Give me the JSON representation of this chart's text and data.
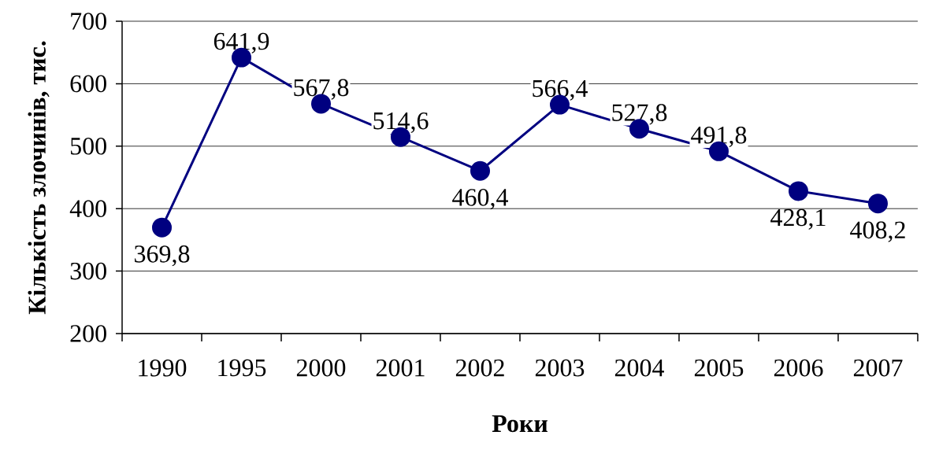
{
  "chart_data": {
    "type": "line",
    "xlabel": "Роки",
    "ylabel": "Кількість злочинів, тис.",
    "categories": [
      "1990",
      "1995",
      "2000",
      "2001",
      "2002",
      "2003",
      "2004",
      "2005",
      "2006",
      "2007"
    ],
    "values": [
      369.8,
      641.9,
      567.8,
      514.6,
      460.4,
      566.4,
      527.8,
      491.8,
      428.1,
      408.2
    ],
    "value_labels": [
      "369,8",
      "641,9",
      "567,8",
      "514,6",
      "460,4",
      "566,4",
      "527,8",
      "491,8",
      "428,1",
      "408,2"
    ],
    "color": "#000080",
    "marker": "circle",
    "line_style": "solid",
    "ylim": [
      200,
      700
    ],
    "yticks": [
      200,
      300,
      400,
      500,
      600,
      700
    ],
    "grid": "y"
  }
}
